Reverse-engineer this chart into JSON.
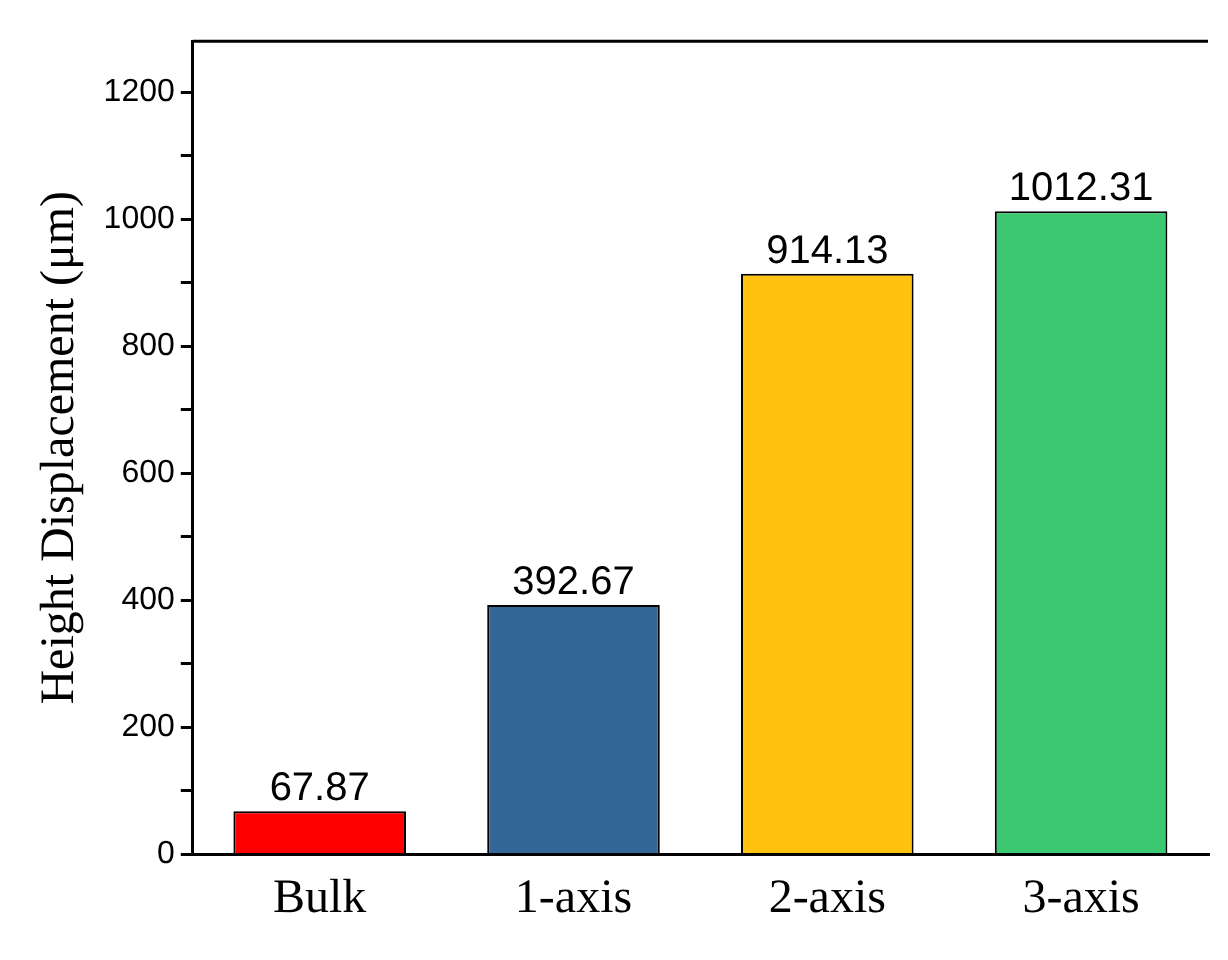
{
  "chart_data": {
    "type": "bar",
    "ylabel": "Height Displacement (μm)",
    "categories": [
      "Bulk",
      "1-axis",
      "2-axis",
      "3-axis"
    ],
    "values": [
      67.87,
      392.67,
      914.13,
      1012.31
    ],
    "colors": [
      "#ff0000",
      "#336699",
      "#ffc20e",
      "#3cc870"
    ],
    "ylim": [
      0,
      1280
    ],
    "yticks": [
      0,
      {
        "value": 100,
        "label": null
      },
      200,
      {
        "value": 300,
        "label": null
      },
      400,
      {
        "value": 500,
        "label": null
      },
      600,
      {
        "value": 700,
        "label": null
      },
      800,
      {
        "value": 900,
        "label": null
      },
      1000,
      {
        "value": 1100,
        "label": null
      },
      1200
    ],
    "data_labels": true,
    "grid": false,
    "legend": false
  }
}
